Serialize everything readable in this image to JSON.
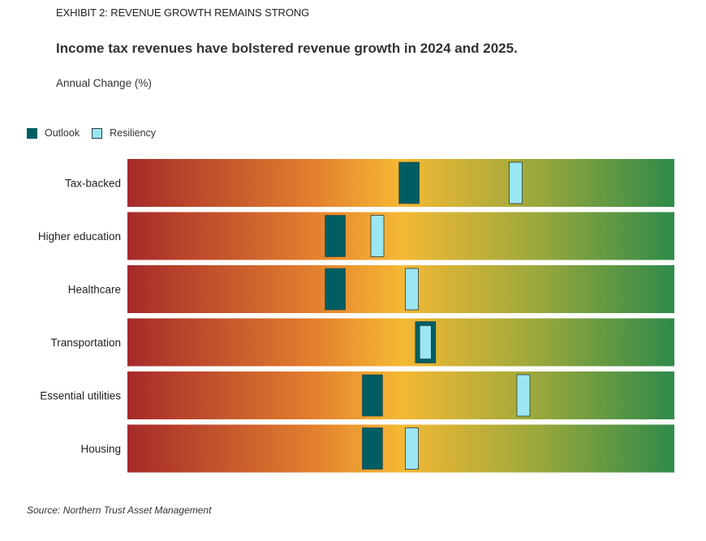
{
  "exhibit_label": "EXHIBIT 2: REVENUE GROWTH REMAINS STRONG",
  "headline": "Income tax revenues have bolstered revenue growth in 2024 and 2025.",
  "subtitle": "Annual Change (%)",
  "legend": [
    {
      "label": "Outlook",
      "color": "#005e63"
    },
    {
      "label": "Resiliency",
      "color": "#9ae6f2"
    }
  ],
  "source": "Source: Northern Trust Asset Management",
  "colors": {
    "gradient_stops": [
      "#a52a2a",
      "#e37f2e",
      "#f5b834",
      "#9aa83c",
      "#2e8a4a"
    ],
    "outlook": "#005e63",
    "resiliency": "#9ae6f2",
    "marker_border": "#2a3d40"
  },
  "chart_data": {
    "type": "bar",
    "scale": [
      0,
      1
    ],
    "categories": [
      "Tax-backed",
      "Higher education",
      "Healthcare",
      "Transportation",
      "Essential utilities",
      "Housing"
    ],
    "series": [
      {
        "name": "Outlook",
        "values": [
          0.515,
          0.38,
          0.38,
          0.545,
          0.448,
          0.448
        ]
      },
      {
        "name": "Resiliency",
        "values": [
          0.71,
          0.457,
          0.52,
          0.545,
          0.724,
          0.52
        ]
      }
    ]
  }
}
